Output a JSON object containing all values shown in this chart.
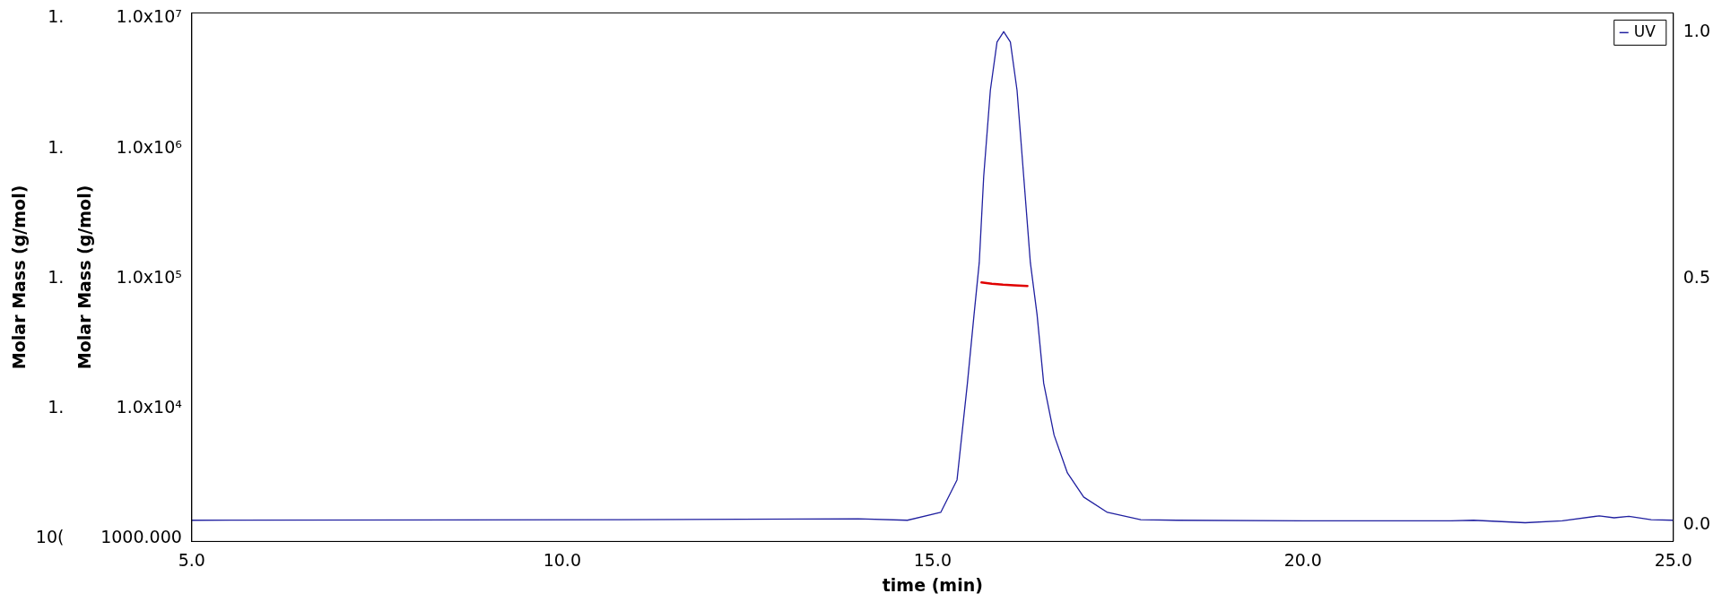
{
  "chart_data": {
    "type": "line",
    "xlabel": "time (min)",
    "ylabel": "Molar Mass (g/mol)",
    "y3label": "Molar Mass (g/mol)",
    "xlim": [
      5,
      25
    ],
    "xticks": [
      {
        "value": 5,
        "label": "5.0"
      },
      {
        "value": 10,
        "label": "10.0"
      },
      {
        "value": 15,
        "label": "15.0"
      },
      {
        "value": 20,
        "label": "20.0"
      },
      {
        "value": 25,
        "label": "25.0"
      }
    ],
    "ylim": [
      950,
      11000000
    ],
    "yticks": [
      {
        "value": 1000,
        "label": "1000.000"
      },
      {
        "value": 10000,
        "label": "1.0x10⁴"
      },
      {
        "value": 100000,
        "label": "1.0x10⁵"
      },
      {
        "value": 1000000,
        "label": "1.0x10⁶"
      },
      {
        "value": 10000000,
        "label": "1.0x10⁷"
      }
    ],
    "annotations": [
      "10(",
      "1.",
      "1.",
      "1.",
      "1."
    ],
    "y2lim": [
      -0.033,
      1.04
    ],
    "y2ticks": [
      {
        "value": 0,
        "label": "0.0"
      },
      {
        "value": 0.5,
        "label": "0.5"
      },
      {
        "value": 1,
        "label": "1.0"
      }
    ],
    "log": "y",
    "legend": "top right",
    "marker": "none",
    "line_style": "solid",
    "series": [
      {
        "name": "UV",
        "color": "#2020a0",
        "axis": "y2",
        "x": [
          5,
          10.8,
          14,
          14.66,
          15.11,
          15.33,
          15.47,
          15.56,
          15.63,
          15.69,
          15.78,
          15.87,
          15.96,
          16.05,
          16.14,
          16.23,
          16.32,
          16.41,
          16.5,
          16.64,
          16.82,
          17.04,
          17.36,
          17.81,
          18.3,
          20,
          22,
          22.3,
          23,
          23.5,
          24,
          24.2,
          24.4,
          24.7,
          25
        ],
        "values": [
          0.01,
          0.011,
          0.013,
          0.01,
          0.026,
          0.092,
          0.288,
          0.428,
          0.533,
          0.708,
          0.883,
          0.981,
          1.002,
          0.981,
          0.883,
          0.708,
          0.533,
          0.428,
          0.288,
          0.183,
          0.106,
          0.057,
          0.026,
          0.011,
          0.01,
          0.009,
          0.009,
          0.01,
          0.005,
          0.009,
          0.019,
          0.015,
          0.018,
          0.011,
          0.01
        ]
      },
      {
        "color": "#e00000",
        "x": [
          15.66,
          15.8,
          15.95,
          16.1,
          16.28
        ],
        "values": [
          93000,
          91000,
          89500,
          88500,
          87500
        ]
      }
    ]
  }
}
